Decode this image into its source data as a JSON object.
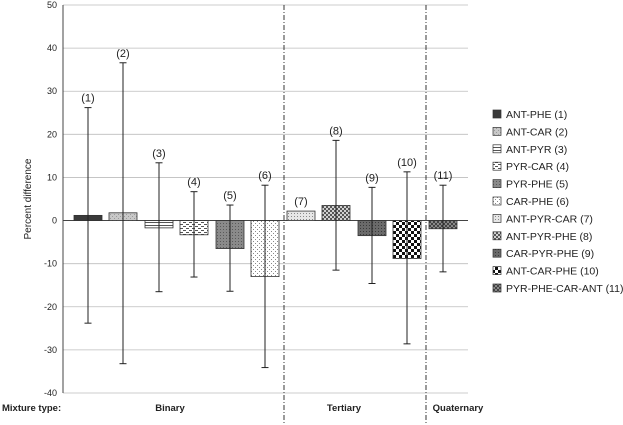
{
  "chart_data": {
    "type": "bar",
    "ylabel": "Percent difference",
    "ylim": [
      -40,
      50
    ],
    "y_ticks": [
      50,
      40,
      30,
      20,
      10,
      0,
      -10,
      -20,
      -30,
      -40
    ],
    "grid": true,
    "legend_position": "right",
    "bars": [
      {
        "number_label": "(1)",
        "legend": "ANT-PHE (1)",
        "value": 1.2,
        "err_high": 26.2,
        "err_low": -23.8,
        "pattern": "dark"
      },
      {
        "number_label": "(2)",
        "legend": "ANT-CAR (2)",
        "value": 1.8,
        "err_high": 36.6,
        "err_low": -33.2,
        "pattern": "lightgray"
      },
      {
        "number_label": "(3)",
        "legend": "ANT-PYR (3)",
        "value": -1.7,
        "err_high": 13.4,
        "err_low": -16.5,
        "pattern": "horiz"
      },
      {
        "number_label": "(4)",
        "legend": "PYR-CAR (4)",
        "value": -3.3,
        "err_high": 6.7,
        "err_low": -13.1,
        "pattern": "hdash"
      },
      {
        "number_label": "(5)",
        "legend": "PYR-PHE (5)",
        "value": -6.5,
        "err_high": 3.6,
        "err_low": -16.4,
        "pattern": "midgray"
      },
      {
        "number_label": "(6)",
        "legend": "CAR-PHE (6)",
        "value": -13.0,
        "err_high": 8.2,
        "err_low": -34.1,
        "pattern": "dots"
      },
      {
        "number_label": "(7)",
        "legend": "ANT-PYR-CAR (7)",
        "value": 2.2,
        "err_high": null,
        "err_low": null,
        "pattern": "fine"
      },
      {
        "number_label": "(8)",
        "legend": "ANT-PYR-PHE (8)",
        "value": 3.5,
        "err_high": 18.6,
        "err_low": -11.5,
        "pattern": "checker"
      },
      {
        "number_label": "(9)",
        "legend": "CAR-PYR-PHE (9)",
        "value": -3.5,
        "err_high": 7.7,
        "err_low": -14.6,
        "pattern": "darkgray"
      },
      {
        "number_label": "(10)",
        "legend": "ANT-CAR-PHE (10)",
        "value": -8.8,
        "err_high": 11.3,
        "err_low": -28.6,
        "pattern": "bigcheck"
      },
      {
        "number_label": "(11)",
        "legend": "PYR-PHE-CAR-ANT (11)",
        "value": -1.9,
        "err_high": 8.2,
        "err_low": -11.9,
        "pattern": "crosshatch"
      }
    ],
    "groups": [
      {
        "label": "Binary",
        "bars": [
          0,
          1,
          2,
          3,
          4,
          5
        ]
      },
      {
        "label": "Tertiary",
        "bars": [
          6,
          7,
          8,
          9
        ]
      },
      {
        "label": "Quaternary",
        "bars": [
          10
        ]
      }
    ],
    "mixture_label": "Mixture type:"
  }
}
